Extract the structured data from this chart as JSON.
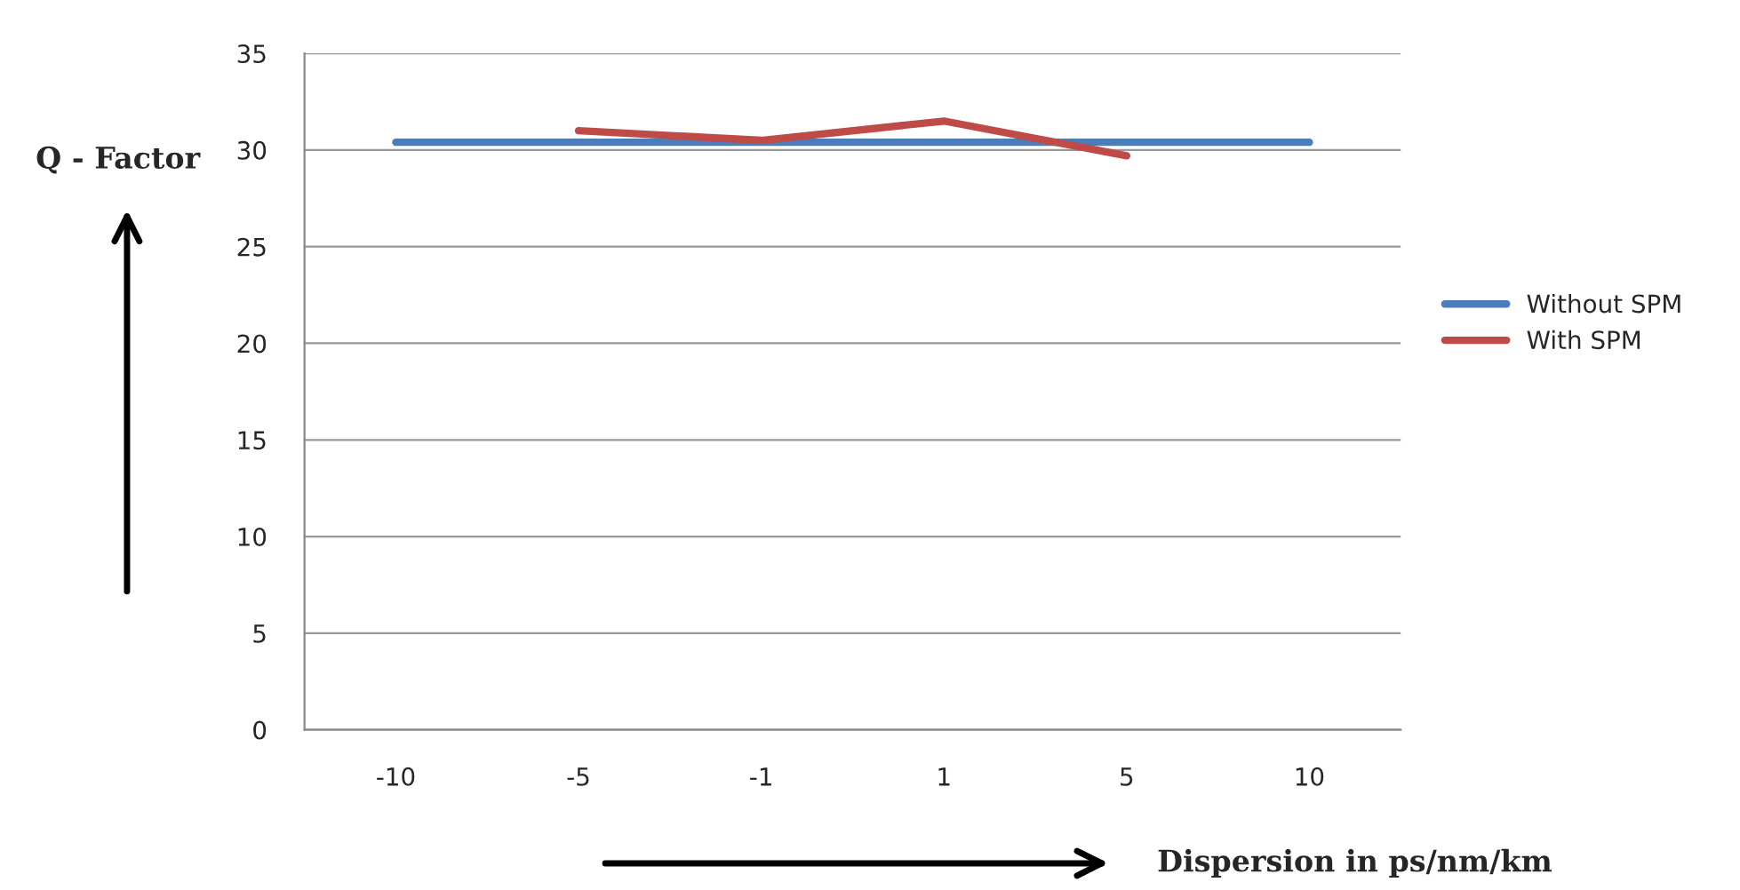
{
  "chart_data": {
    "type": "line",
    "xlabel": "Dispersion in ps/nm/km",
    "ylabel": "Q - Factor",
    "categories": [
      "-10",
      "-5",
      "-1",
      "1",
      "5",
      "10"
    ],
    "series": [
      {
        "name": "Without SPM",
        "color": "#4a7ebb",
        "values": [
          30.4,
          30.4,
          30.4,
          30.4,
          30.4,
          30.4
        ]
      },
      {
        "name": "With SPM",
        "color": "#be4b48",
        "values": [
          null,
          31.0,
          30.5,
          31.5,
          29.7,
          null
        ]
      }
    ],
    "ylim": [
      0,
      35
    ],
    "yticks": [
      0,
      5,
      10,
      15,
      20,
      25,
      30,
      35
    ],
    "grid": "y",
    "legend": "right",
    "marker": "none",
    "line_style": "solid"
  }
}
